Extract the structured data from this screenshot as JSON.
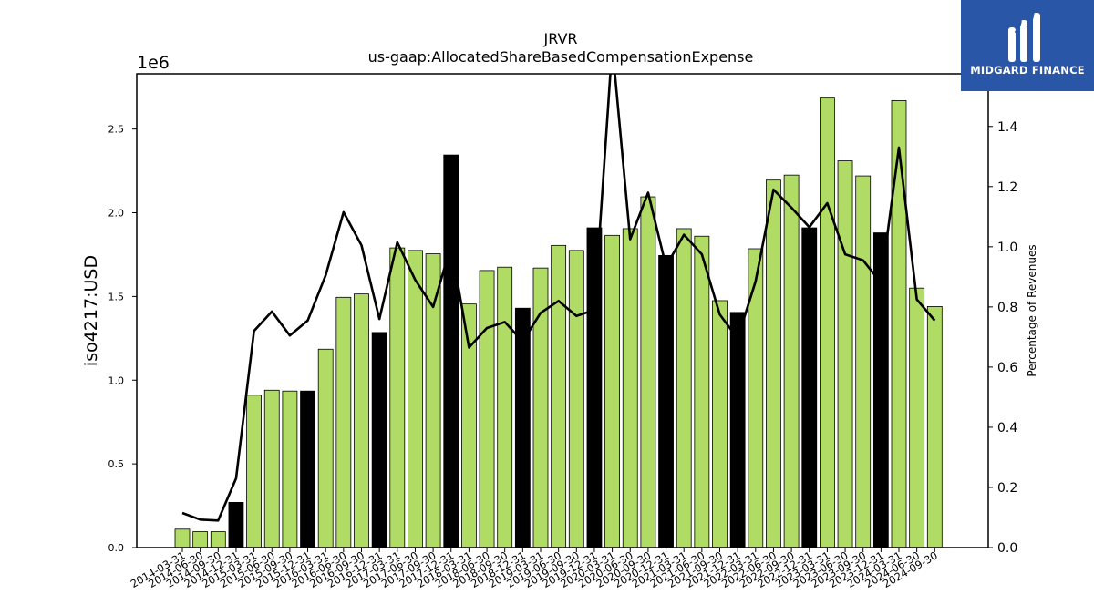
{
  "chart_data": {
    "type": "bar",
    "title": "JRVR",
    "subtitle": "us-gaap:AllocatedShareBasedCompensationExpense",
    "ylabel": "iso4217:USD",
    "y2label": "Percentage of Revenues",
    "y_scale_label": "1e6",
    "ylim": [
      0,
      2830000
    ],
    "y2lim": [
      0,
      1.575
    ],
    "yticks": [
      "0.0",
      "0.5",
      "1.0",
      "1.5",
      "2.0",
      "2.5"
    ],
    "y2ticks": [
      "0.0",
      "0.2",
      "0.4",
      "0.6",
      "0.8",
      "1.0",
      "1.2",
      "1.4"
    ],
    "categories": [
      "2014-03-31",
      "2014-06-30",
      "2014-09-30",
      "2014-12-31",
      "2015-03-31",
      "2015-06-30",
      "2015-09-30",
      "2015-12-31",
      "2016-03-31",
      "2016-06-30",
      "2016-09-30",
      "2016-12-31",
      "2017-03-31",
      "2017-06-30",
      "2017-09-30",
      "2017-12-31",
      "2018-03-31",
      "2018-06-30",
      "2018-09-30",
      "2018-12-31",
      "2019-03-31",
      "2019-06-30",
      "2019-09-30",
      "2019-12-31",
      "2020-03-31",
      "2020-06-30",
      "2020-09-30",
      "2020-12-31",
      "2021-03-31",
      "2021-06-30",
      "2021-09-30",
      "2021-12-31",
      "2022-03-31",
      "2022-06-30",
      "2022-09-30",
      "2022-12-31",
      "2023-03-31",
      "2023-06-30",
      "2023-09-30",
      "2023-12-31",
      "2024-03-31",
      "2024-06-30",
      "2024-09-30"
    ],
    "series": [
      {
        "type": "bar",
        "values": [
          110000,
          95000,
          95000,
          270000,
          910000,
          940000,
          935000,
          935000,
          1185000,
          1495000,
          1515000,
          1285000,
          1790000,
          1775000,
          1755000,
          2345000,
          1455000,
          1655000,
          1675000,
          1430000,
          1670000,
          1805000,
          1775000,
          1910000,
          1865000,
          1905000,
          2095000,
          1745000,
          1905000,
          1860000,
          1475000,
          1405000,
          1785000,
          2195000,
          2225000,
          1910000,
          2685000,
          2310000,
          2220000,
          1880000,
          2670000,
          1550000,
          1440000
        ],
        "highlight": [
          false,
          false,
          false,
          true,
          false,
          false,
          false,
          true,
          false,
          false,
          false,
          true,
          false,
          false,
          false,
          true,
          false,
          false,
          false,
          true,
          false,
          false,
          false,
          true,
          false,
          false,
          false,
          true,
          false,
          false,
          false,
          true,
          false,
          false,
          false,
          true,
          false,
          false,
          false,
          true,
          false,
          false,
          false
        ]
      },
      {
        "type": "line",
        "axis": "right",
        "values": [
          0.115,
          0.093,
          0.09,
          0.23,
          0.72,
          0.785,
          0.705,
          0.755,
          0.905,
          1.115,
          1.005,
          0.76,
          1.015,
          0.89,
          0.8,
          1.005,
          0.665,
          0.73,
          0.75,
          0.685,
          0.78,
          0.82,
          0.77,
          0.79,
          1.67,
          1.025,
          1.18,
          0.935,
          1.04,
          0.975,
          0.775,
          0.695,
          0.885,
          1.19,
          1.13,
          1.065,
          1.145,
          0.975,
          0.955,
          0.88,
          1.33,
          0.825,
          0.755
        ]
      }
    ],
    "colors": {
      "bar": "#b0dc65",
      "bar_highlight": "#000000",
      "line": "#000000"
    },
    "grid": false
  },
  "logo": {
    "text": "MIDGARD FINANCE",
    "icon": "mf-logo-icon",
    "bg": "#2a56a8"
  }
}
